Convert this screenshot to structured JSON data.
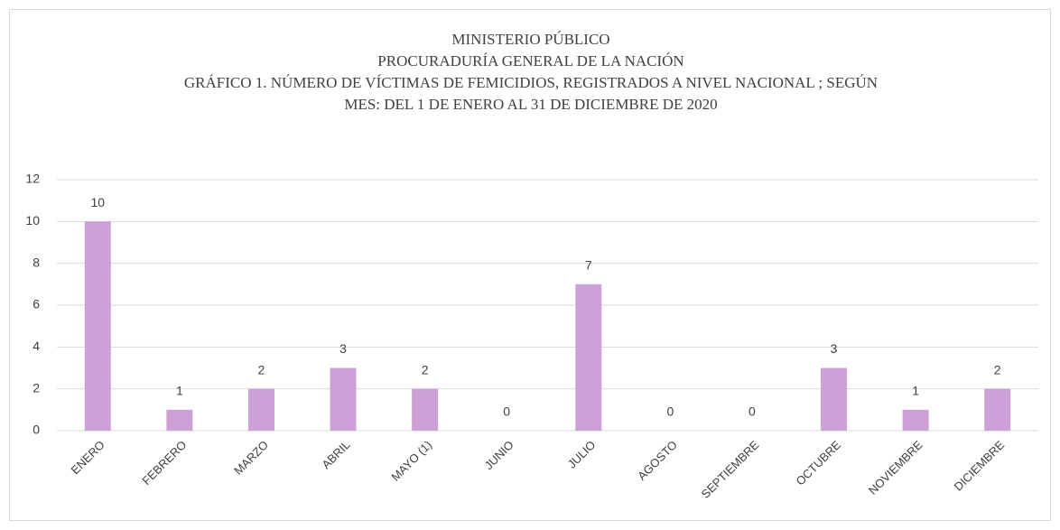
{
  "chart_data": {
    "type": "bar",
    "title": [
      "MINISTERIO PÚBLICO",
      "PROCURADURÍA GENERAL DE LA NACIÓN",
      "GRÁFICO 1. NÚMERO DE VÍCTIMAS DE FEMICIDIOS, REGISTRADOS A NIVEL NACIONAL ; SEGÚN",
      "MES: DEL 1 DE ENERO AL 31 DE DICIEMBRE DE 2020"
    ],
    "categories": [
      "ENERO",
      "FEBRERO",
      "MARZO",
      "ABRIL",
      "MAYO (1)",
      "JUNIO",
      "JULIO",
      "AGOSTO",
      "SEPTIEMBRE",
      "OCTUBRE",
      "NOVIEMBRE",
      "DICIEMBRE"
    ],
    "values": [
      10,
      1,
      2,
      3,
      2,
      0,
      7,
      0,
      0,
      3,
      1,
      2
    ],
    "color": "#cda0d7",
    "ylim": [
      0,
      12
    ],
    "yticks": [
      0,
      2,
      4,
      6,
      8,
      10,
      12
    ],
    "grid": true
  }
}
